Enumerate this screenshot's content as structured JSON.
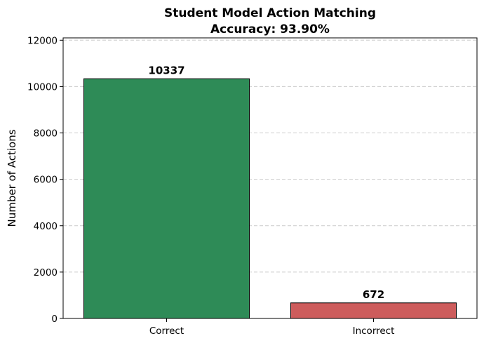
{
  "chart_data": {
    "type": "bar",
    "title_line1": "Student Model Action Matching",
    "title_line2": "Accuracy: 93.90%",
    "xlabel": "",
    "ylabel": "Number of Actions",
    "categories": [
      "Correct",
      "Incorrect"
    ],
    "values": [
      10337,
      672
    ],
    "value_labels": [
      "10337",
      "672"
    ],
    "colors": [
      "#2e8b57",
      "#cd5c5c"
    ],
    "ylim": [
      0,
      12100
    ],
    "yticks": [
      0,
      2000,
      4000,
      6000,
      8000,
      10000,
      12000
    ],
    "ytick_labels": [
      "0",
      "2000",
      "4000",
      "6000",
      "8000",
      "10000",
      "12000"
    ],
    "grid": "y-dashed",
    "legend": "none"
  }
}
